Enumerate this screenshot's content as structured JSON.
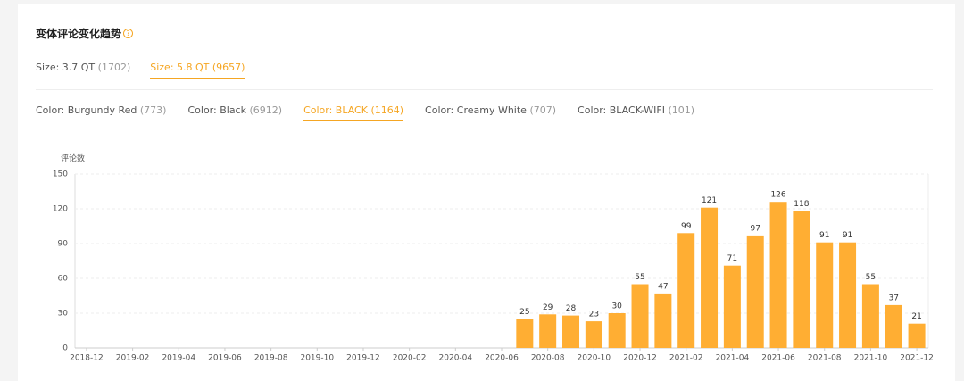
{
  "header": {
    "title": "变体评论变化趋势",
    "help_icon": "?"
  },
  "size_tabs": [
    {
      "label": "Size: 3.7 QT",
      "count": "(1702)",
      "active": false
    },
    {
      "label": "Size: 5.8 QT",
      "count": "(9657)",
      "active": true
    }
  ],
  "color_tabs": [
    {
      "label": "Color: Burgundy Red",
      "count": "(773)",
      "active": false
    },
    {
      "label": "Color: Black",
      "count": "(6912)",
      "active": false
    },
    {
      "label": "Color: BLACK",
      "count": "(1164)",
      "active": true
    },
    {
      "label": "Color: Creamy White",
      "count": "(707)",
      "active": false
    },
    {
      "label": "Color: BLACK-WIFI",
      "count": "(101)",
      "active": false
    }
  ],
  "chart_data": {
    "type": "bar",
    "y_label": "评论数",
    "color": "#ffae33",
    "grid": true,
    "ylim": [
      0,
      150
    ],
    "yticks": [
      0,
      30,
      60,
      90,
      120,
      150
    ],
    "categories": [
      "2018-12",
      null,
      "2019-02",
      null,
      "2019-04",
      null,
      "2019-06",
      null,
      "2019-08",
      null,
      "2019-10",
      null,
      "2019-12",
      null,
      "2020-02",
      null,
      "2020-04",
      null,
      "2020-06",
      null,
      "2020-08",
      null,
      "2020-10",
      null,
      "2020-12",
      null,
      "2021-02",
      null,
      "2021-04",
      null,
      "2021-06",
      null,
      "2021-08",
      null,
      "2021-10",
      null,
      "2021-12"
    ],
    "values": [
      0,
      0,
      0,
      0,
      0,
      0,
      0,
      0,
      0,
      0,
      0,
      0,
      0,
      0,
      0,
      0,
      0,
      0,
      0,
      25,
      29,
      28,
      23,
      30,
      55,
      47,
      99,
      121,
      71,
      97,
      126,
      118,
      91,
      91,
      55,
      37,
      21
    ]
  }
}
